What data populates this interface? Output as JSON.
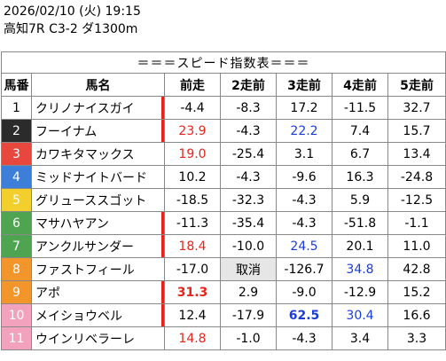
{
  "header": {
    "datetime": "2026/02/10 (火) 19:15",
    "race": "高知7R C3-2 ダ1300m"
  },
  "table": {
    "title": "＝＝＝スピード指数表＝＝＝",
    "columns": [
      "馬番",
      "馬名",
      "前走",
      "2走前",
      "3走前",
      "4走前",
      "5走前"
    ],
    "rows": [
      {
        "no": "1",
        "name": "クリノナイスガイ",
        "v": [
          "-4.4",
          "-8.3",
          "17.2",
          "-11.5",
          "32.7"
        ]
      },
      {
        "no": "2",
        "name": "フーイナム",
        "v": [
          "23.9",
          "-4.3",
          "22.2",
          "7.4",
          "15.7"
        ]
      },
      {
        "no": "3",
        "name": "カワキタマックス",
        "v": [
          "19.0",
          "-25.4",
          "3.1",
          "6.7",
          "13.4"
        ]
      },
      {
        "no": "4",
        "name": "ミッドナイトバード",
        "v": [
          "10.2",
          "-4.3",
          "-9.6",
          "16.3",
          "-24.8"
        ]
      },
      {
        "no": "5",
        "name": "グリューススゴット",
        "v": [
          "-18.5",
          "-32.3",
          "-4.3",
          "5.9",
          "-12.5"
        ]
      },
      {
        "no": "6",
        "name": "マサハヤアン",
        "v": [
          "-11.3",
          "-35.4",
          "-4.3",
          "-51.8",
          "-1.1"
        ]
      },
      {
        "no": "7",
        "name": "アンクルサンダー",
        "v": [
          "18.4",
          "-10.0",
          "24.5",
          "20.1",
          "11.0"
        ]
      },
      {
        "no": "8",
        "name": "ファストフィール",
        "v": [
          "-17.0",
          "取消",
          "-126.7",
          "34.8",
          "42.8"
        ]
      },
      {
        "no": "9",
        "name": "アポ",
        "v": [
          "31.3",
          "2.9",
          "-9.0",
          "-12.9",
          "15.2"
        ]
      },
      {
        "no": "10",
        "name": "メイショウベル",
        "v": [
          "12.4",
          "-17.9",
          "62.5",
          "30.4",
          "16.6"
        ]
      },
      {
        "no": "11",
        "name": "ウインリベラーレ",
        "v": [
          "14.8",
          "-1.0",
          "-4.3",
          "3.4",
          "3.3"
        ]
      }
    ]
  }
}
